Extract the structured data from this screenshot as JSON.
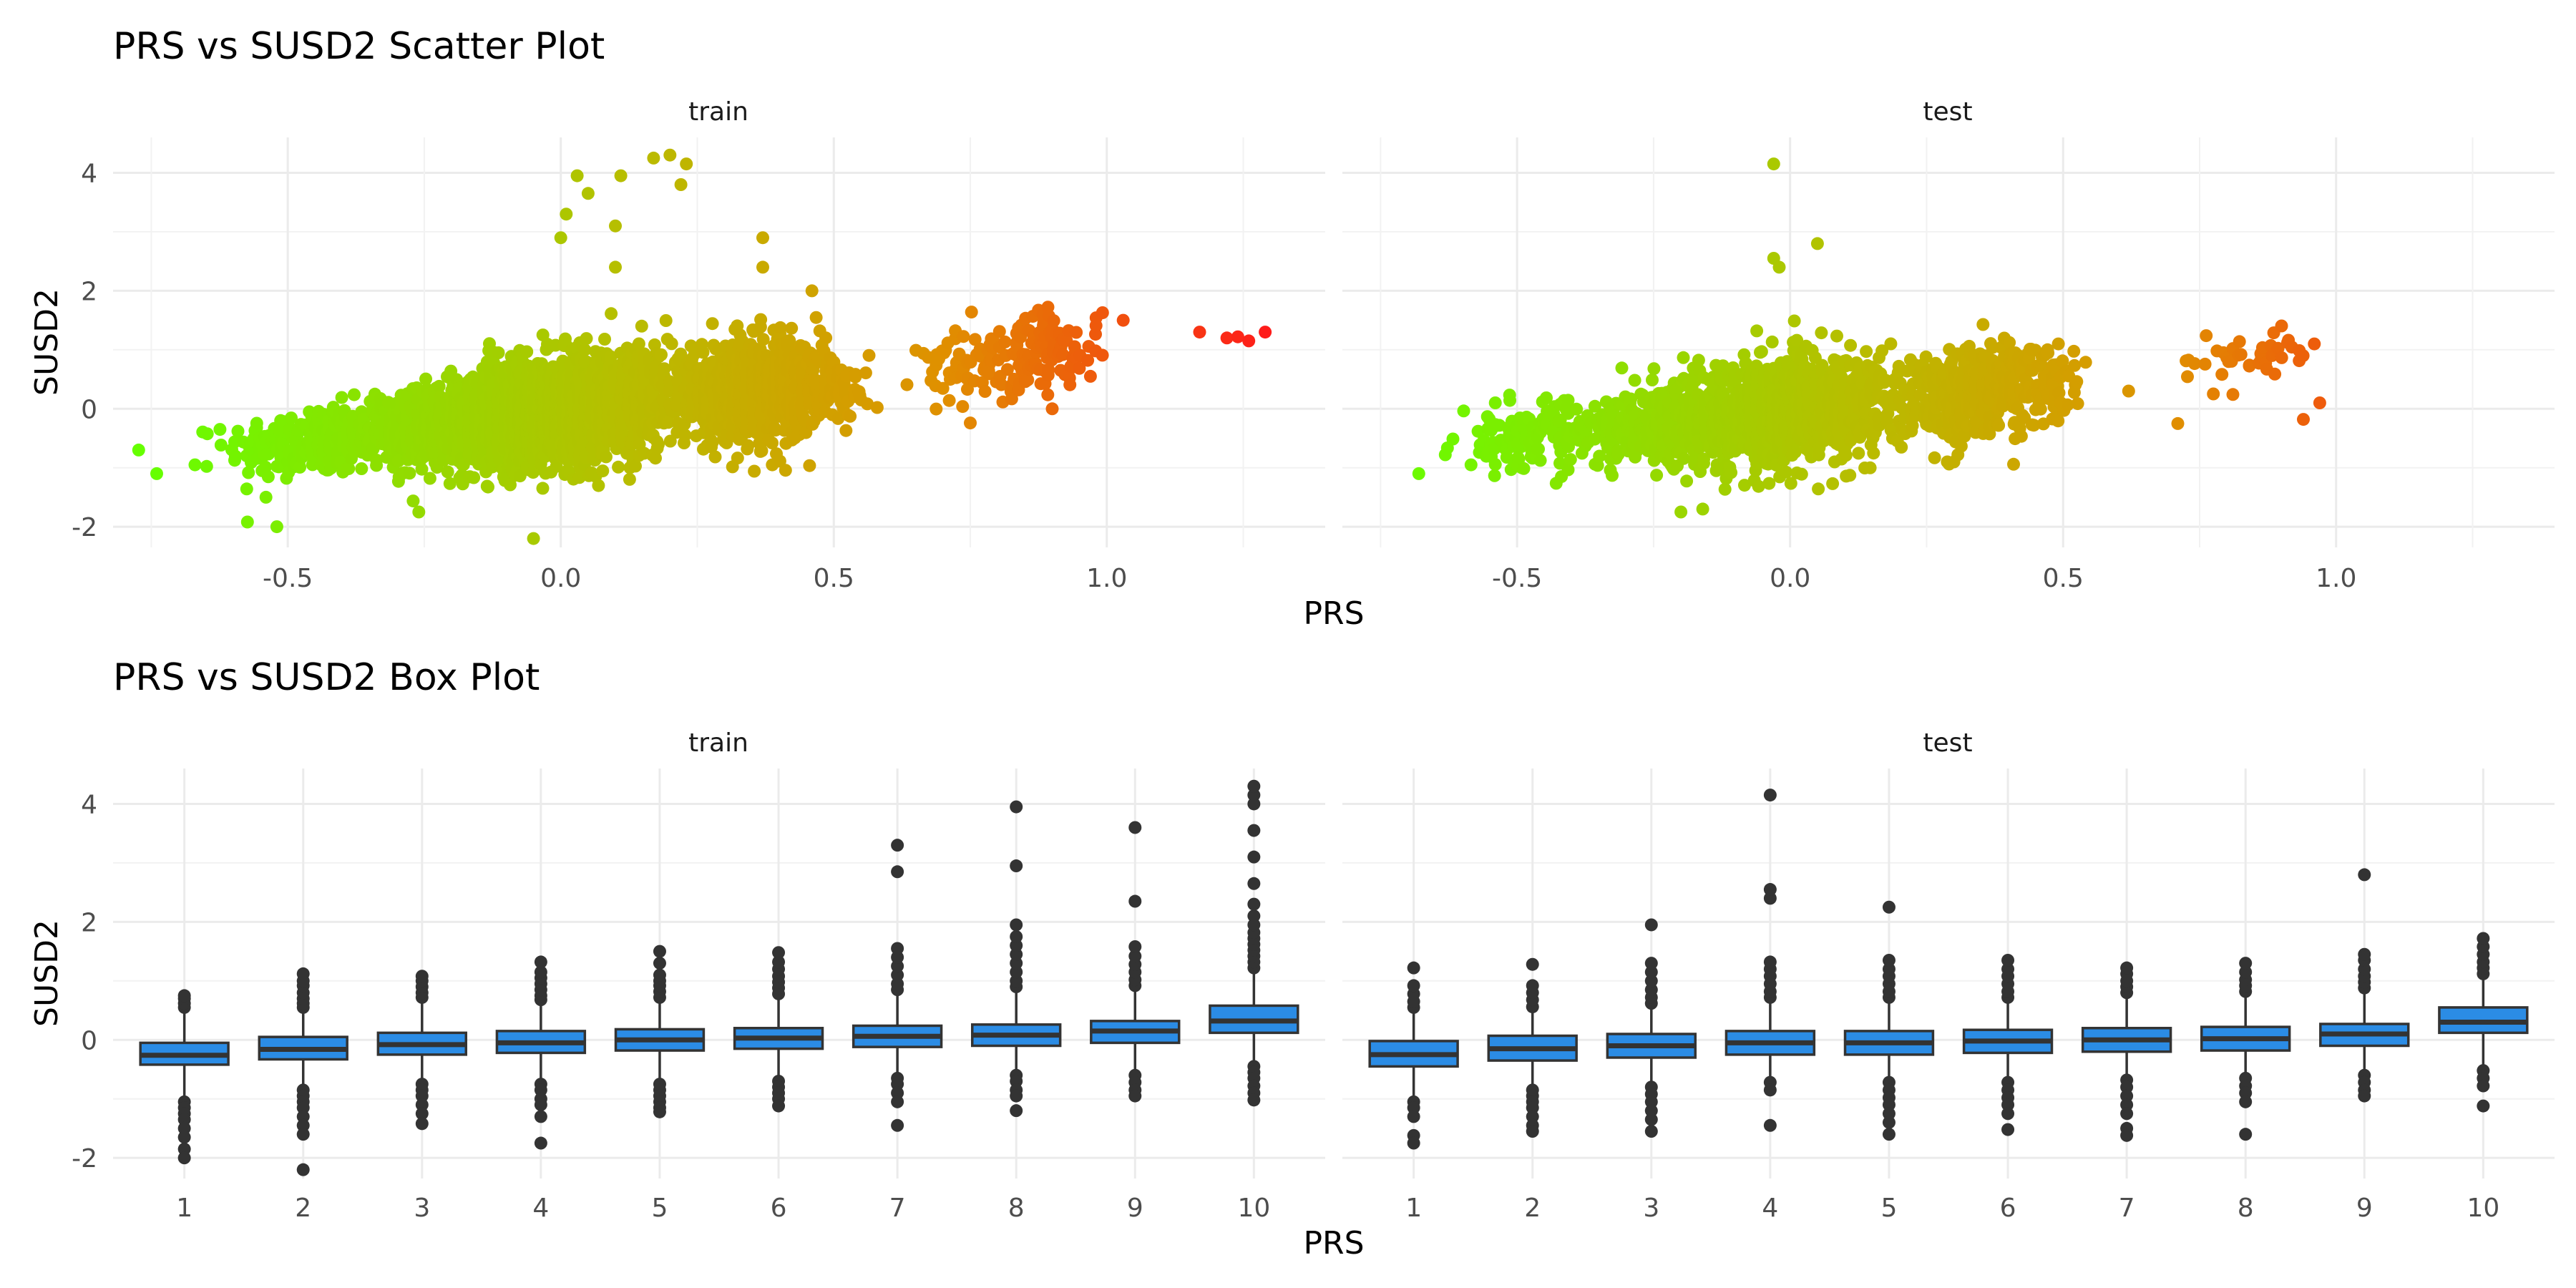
{
  "chart_data": [
    {
      "type": "scatter",
      "title": "PRS vs SUSD2 Scatter Plot",
      "xlabel": "PRS",
      "ylabel": "SUSD2",
      "xlim": [
        -0.82,
        1.4
      ],
      "ylim": [
        -2.35,
        4.6
      ],
      "x_ticks": [
        "-0.5",
        "0.0",
        "0.5",
        "1.0"
      ],
      "y_ticks": [
        "-2",
        "0",
        "2",
        "4"
      ],
      "grid": true,
      "color_scale": {
        "low": "#66ff00",
        "mid": "#b6bf00",
        "high": "#ff1a1a",
        "domain": [
          -0.75,
          1.3
        ]
      },
      "panels": [
        {
          "name": "train",
          "clusters": [
            {
              "cx": -0.45,
              "cy": -0.55,
              "sx": 0.08,
              "sy": 0.3,
              "n": 260
            },
            {
              "cx": -0.24,
              "cy": -0.3,
              "sx": 0.06,
              "sy": 0.32,
              "n": 380
            },
            {
              "cx": -0.04,
              "cy": -0.05,
              "sx": 0.08,
              "sy": 0.45,
              "n": 1600
            },
            {
              "cx": 0.1,
              "cy": 0.1,
              "sx": 0.07,
              "sy": 0.45,
              "n": 400
            },
            {
              "cx": 0.34,
              "cy": 0.3,
              "sx": 0.07,
              "sy": 0.4,
              "n": 900
            },
            {
              "cx": 0.48,
              "cy": 0.35,
              "sx": 0.04,
              "sy": 0.3,
              "n": 90
            },
            {
              "cx": 0.76,
              "cy": 0.7,
              "sx": 0.05,
              "sy": 0.35,
              "n": 80
            },
            {
              "cx": 0.89,
              "cy": 1.0,
              "sx": 0.05,
              "sy": 0.33,
              "n": 110
            }
          ],
          "extra_points": [
            {
              "x": -0.74,
              "y": -1.1
            },
            {
              "x": -0.67,
              "y": -0.95
            },
            {
              "x": -0.52,
              "y": -2.0
            },
            {
              "x": -0.54,
              "y": -1.5
            },
            {
              "x": -0.26,
              "y": -1.75
            },
            {
              "x": -0.05,
              "y": -2.2
            },
            {
              "x": 0.0,
              "y": 2.9
            },
            {
              "x": 0.01,
              "y": 3.3
            },
            {
              "x": 0.03,
              "y": 3.95
            },
            {
              "x": 0.05,
              "y": 3.65
            },
            {
              "x": 0.1,
              "y": 2.4
            },
            {
              "x": 0.1,
              "y": 3.1
            },
            {
              "x": 0.11,
              "y": 3.95
            },
            {
              "x": 0.17,
              "y": 4.25
            },
            {
              "x": 0.2,
              "y": 4.3
            },
            {
              "x": 0.22,
              "y": 3.8
            },
            {
              "x": 0.23,
              "y": 4.15
            },
            {
              "x": 0.37,
              "y": 2.9
            },
            {
              "x": 0.37,
              "y": 2.4
            },
            {
              "x": 0.46,
              "y": 2.0
            },
            {
              "x": 0.55,
              "y": 0.15
            },
            {
              "x": 1.03,
              "y": 1.5
            },
            {
              "x": 1.17,
              "y": 1.3
            },
            {
              "x": 1.22,
              "y": 1.2
            },
            {
              "x": 1.24,
              "y": 1.22
            },
            {
              "x": 1.26,
              "y": 1.15
            },
            {
              "x": 1.29,
              "y": 1.3
            },
            {
              "x": 0.97,
              "y": 0.55
            },
            {
              "x": 0.9,
              "y": 0.0
            }
          ]
        },
        {
          "name": "test",
          "clusters": [
            {
              "cx": -0.47,
              "cy": -0.5,
              "sx": 0.07,
              "sy": 0.28,
              "n": 150
            },
            {
              "cx": -0.25,
              "cy": -0.3,
              "sx": 0.06,
              "sy": 0.3,
              "n": 220
            },
            {
              "cx": -0.05,
              "cy": -0.05,
              "sx": 0.08,
              "sy": 0.45,
              "n": 900
            },
            {
              "cx": 0.1,
              "cy": 0.1,
              "sx": 0.07,
              "sy": 0.4,
              "n": 220
            },
            {
              "cx": 0.34,
              "cy": 0.3,
              "sx": 0.07,
              "sy": 0.38,
              "n": 450
            },
            {
              "cx": 0.48,
              "cy": 0.4,
              "sx": 0.03,
              "sy": 0.3,
              "n": 40
            },
            {
              "cx": 0.83,
              "cy": 0.85,
              "sx": 0.06,
              "sy": 0.28,
              "n": 40
            }
          ],
          "extra_points": [
            {
              "x": -0.68,
              "y": -1.1
            },
            {
              "x": -0.54,
              "y": 0.1
            },
            {
              "x": -0.03,
              "y": 4.15
            },
            {
              "x": -0.03,
              "y": 2.55
            },
            {
              "x": -0.02,
              "y": 2.4
            },
            {
              "x": 0.05,
              "y": 2.8
            },
            {
              "x": -0.2,
              "y": -1.75
            },
            {
              "x": -0.16,
              "y": -1.7
            },
            {
              "x": 0.62,
              "y": 0.3
            },
            {
              "x": 0.71,
              "y": -0.25
            },
            {
              "x": 0.94,
              "y": -0.18
            },
            {
              "x": 0.97,
              "y": 0.1
            },
            {
              "x": 0.96,
              "y": 1.1
            },
            {
              "x": 0.3,
              "y": -0.9
            }
          ]
        }
      ]
    },
    {
      "type": "box",
      "title": "PRS vs SUSD2 Box Plot",
      "xlabel": "PRS",
      "ylabel": "SUSD2",
      "categories": [
        "1",
        "2",
        "3",
        "4",
        "5",
        "6",
        "7",
        "8",
        "9",
        "10"
      ],
      "ylim": [
        -2.35,
        4.6
      ],
      "y_ticks": [
        "-2",
        "0",
        "2",
        "4"
      ],
      "grid": true,
      "box_fill": "#2b8ce5",
      "panels": [
        {
          "name": "train",
          "boxes": [
            {
              "q1": -0.42,
              "median": -0.26,
              "q3": -0.05,
              "lo": -0.95,
              "hi": 0.5,
              "outliers": [
                0.55,
                0.62,
                0.7,
                0.75,
                -1.05,
                -1.15,
                -1.25,
                -1.35,
                -1.5,
                -1.65,
                -1.85,
                -2.0
              ]
            },
            {
              "q1": -0.33,
              "median": -0.16,
              "q3": 0.05,
              "lo": -0.8,
              "hi": 0.5,
              "outliers": [
                0.55,
                0.62,
                0.7,
                0.8,
                0.92,
                1.0,
                1.12,
                -0.85,
                -0.95,
                -1.05,
                -1.15,
                -1.3,
                -1.45,
                -1.6,
                -2.2
              ]
            },
            {
              "q1": -0.25,
              "median": -0.08,
              "q3": 0.12,
              "lo": -0.7,
              "hi": 0.65,
              "outliers": [
                0.72,
                0.8,
                0.9,
                1.0,
                1.08,
                -0.75,
                -0.85,
                -0.95,
                -1.1,
                -1.25,
                -1.42
              ]
            },
            {
              "q1": -0.22,
              "median": -0.05,
              "q3": 0.15,
              "lo": -0.68,
              "hi": 0.62,
              "outliers": [
                0.68,
                0.75,
                0.85,
                0.95,
                1.05,
                1.15,
                1.32,
                -0.75,
                -0.85,
                -1.0,
                -1.1,
                -1.3,
                -1.75
              ]
            },
            {
              "q1": -0.18,
              "median": 0.0,
              "q3": 0.18,
              "lo": -0.7,
              "hi": 0.65,
              "outliers": [
                0.72,
                0.82,
                0.92,
                1.0,
                1.1,
                1.3,
                1.5,
                -0.75,
                -0.85,
                -0.95,
                -1.05,
                -1.15,
                -1.22
              ]
            },
            {
              "q1": -0.15,
              "median": 0.03,
              "q3": 0.2,
              "lo": -0.62,
              "hi": 0.7,
              "outliers": [
                0.78,
                0.88,
                0.98,
                1.08,
                1.2,
                1.32,
                1.48,
                -0.7,
                -0.8,
                -0.9,
                -1.0,
                -1.12
              ]
            },
            {
              "q1": -0.12,
              "median": 0.06,
              "q3": 0.24,
              "lo": -0.6,
              "hi": 0.78,
              "outliers": [
                0.85,
                0.95,
                1.1,
                1.25,
                1.4,
                1.55,
                2.85,
                3.3,
                -0.65,
                -0.75,
                -0.9,
                -1.05,
                -1.45
              ]
            },
            {
              "q1": -0.1,
              "median": 0.08,
              "q3": 0.26,
              "lo": -0.55,
              "hi": 0.82,
              "outliers": [
                0.9,
                1.0,
                1.15,
                1.3,
                1.45,
                1.6,
                1.75,
                1.95,
                2.95,
                3.95,
                -0.6,
                -0.7,
                -0.85,
                -0.95,
                -1.2
              ]
            },
            {
              "q1": -0.05,
              "median": 0.15,
              "q3": 0.32,
              "lo": -0.55,
              "hi": 0.85,
              "outliers": [
                0.92,
                1.02,
                1.15,
                1.28,
                1.42,
                1.58,
                2.35,
                3.6,
                -0.6,
                -0.72,
                -0.85,
                -0.95
              ]
            },
            {
              "q1": 0.12,
              "median": 0.32,
              "q3": 0.58,
              "lo": -0.38,
              "hi": 1.15,
              "outliers": [
                1.22,
                1.32,
                1.42,
                1.52,
                1.62,
                1.72,
                1.82,
                1.95,
                2.1,
                2.3,
                2.65,
                3.1,
                3.55,
                4.0,
                4.15,
                4.3,
                -0.45,
                -0.55,
                -0.65,
                -0.78,
                -0.9,
                -1.02
              ]
            }
          ]
        },
        {
          "name": "test",
          "boxes": [
            {
              "q1": -0.45,
              "median": -0.25,
              "q3": -0.02,
              "lo": -1.0,
              "hi": 0.5,
              "outliers": [
                0.55,
                0.65,
                0.78,
                0.92,
                1.22,
                -1.05,
                -1.15,
                -1.3,
                -1.62,
                -1.75
              ]
            },
            {
              "q1": -0.35,
              "median": -0.15,
              "q3": 0.07,
              "lo": -0.8,
              "hi": 0.5,
              "outliers": [
                0.56,
                0.68,
                0.8,
                0.92,
                1.28,
                -0.85,
                -0.95,
                -1.05,
                -1.15,
                -1.3,
                -1.45,
                -1.55
              ]
            },
            {
              "q1": -0.3,
              "median": -0.1,
              "q3": 0.1,
              "lo": -0.75,
              "hi": 0.55,
              "outliers": [
                0.62,
                0.72,
                0.85,
                1.0,
                1.15,
                1.3,
                1.95,
                -0.8,
                -0.92,
                -1.05,
                -1.2,
                -1.35,
                -1.55
              ]
            },
            {
              "q1": -0.25,
              "median": -0.05,
              "q3": 0.15,
              "lo": -0.65,
              "hi": 0.65,
              "outliers": [
                0.72,
                0.82,
                0.95,
                1.08,
                1.2,
                1.32,
                2.4,
                2.55,
                4.15,
                -0.72,
                -0.85,
                -1.45
              ]
            },
            {
              "q1": -0.25,
              "median": -0.05,
              "q3": 0.15,
              "lo": -0.65,
              "hi": 0.65,
              "outliers": [
                0.72,
                0.82,
                0.95,
                1.08,
                1.2,
                1.35,
                2.25,
                -0.72,
                -0.85,
                -0.98,
                -1.1,
                -1.25,
                -1.4,
                -1.6
              ]
            },
            {
              "q1": -0.22,
              "median": -0.02,
              "q3": 0.17,
              "lo": -0.65,
              "hi": 0.65,
              "outliers": [
                0.72,
                0.82,
                0.95,
                1.08,
                1.2,
                1.35,
                -0.72,
                -0.85,
                -0.98,
                -1.1,
                -1.25,
                -1.52
              ]
            },
            {
              "q1": -0.2,
              "median": 0.0,
              "q3": 0.2,
              "lo": -0.6,
              "hi": 0.72,
              "outliers": [
                0.8,
                0.9,
                1.0,
                1.12,
                1.22,
                -0.68,
                -0.8,
                -0.95,
                -1.1,
                -1.25,
                -1.5,
                -1.62
              ]
            },
            {
              "q1": -0.18,
              "median": 0.02,
              "q3": 0.22,
              "lo": -0.58,
              "hi": 0.75,
              "outliers": [
                0.82,
                0.92,
                1.02,
                1.15,
                1.3,
                -0.65,
                -0.78,
                -0.9,
                -1.05,
                -1.6
              ]
            },
            {
              "q1": -0.1,
              "median": 0.1,
              "q3": 0.27,
              "lo": -0.55,
              "hi": 0.8,
              "outliers": [
                0.88,
                0.98,
                1.08,
                1.2,
                1.35,
                1.45,
                2.8,
                -0.6,
                -0.72,
                -0.85,
                -0.95
              ]
            },
            {
              "q1": 0.12,
              "median": 0.3,
              "q3": 0.55,
              "lo": -0.45,
              "hi": 1.05,
              "outliers": [
                1.12,
                1.22,
                1.32,
                1.45,
                1.58,
                1.72,
                -0.52,
                -0.65,
                -0.78,
                -1.12
              ]
            }
          ]
        }
      ]
    }
  ]
}
